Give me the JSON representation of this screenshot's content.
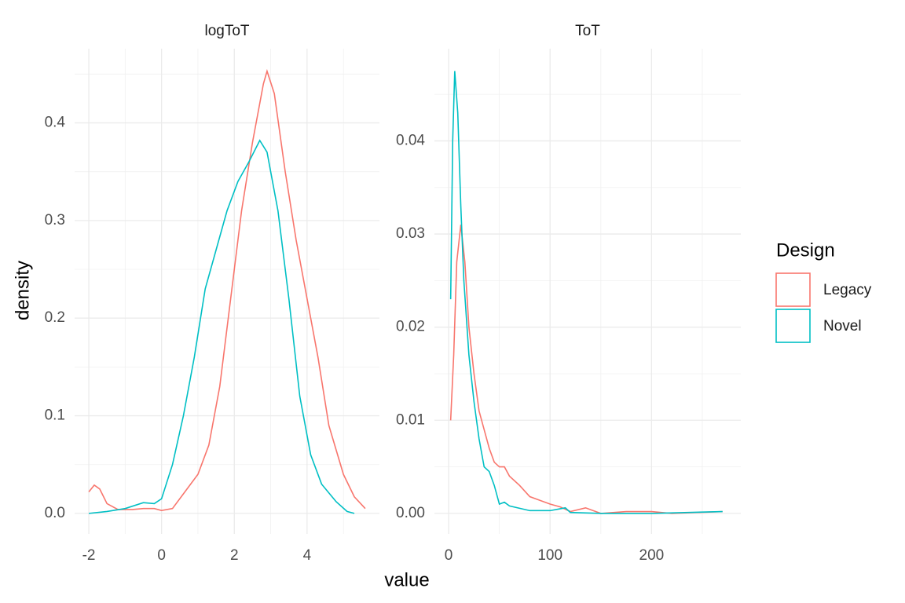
{
  "chart_data": [
    {
      "type": "line",
      "title": "logToT",
      "ylabel": "density",
      "xlabel": "value",
      "legend_title": "Design",
      "xlim": [
        -2.39,
        5.99
      ],
      "ylim": [
        -0.021,
        0.476
      ],
      "xticks": [
        -2,
        0,
        2,
        4
      ],
      "yticks": [
        {
          "value": 0,
          "label": "0.0"
        },
        0.1,
        0.2,
        0.3,
        0.4
      ],
      "grid": true,
      "series": [
        {
          "name": "Legacy",
          "color": "#F8766D",
          "x": [
            -2,
            -1.85,
            -1.7,
            -1.5,
            -1.2,
            -0.8,
            -0.5,
            -0.2,
            0,
            0.3,
            0.6,
            1,
            1.3,
            1.6,
            1.9,
            2.2,
            2.5,
            2.8,
            2.9,
            3.1,
            3.4,
            3.7,
            4.0,
            4.3,
            4.6,
            5.0,
            5.3,
            5.6
          ],
          "values": [
            0.022,
            0.029,
            0.025,
            0.01,
            0.004,
            0.004,
            0.005,
            0.005,
            0.003,
            0.005,
            0.02,
            0.04,
            0.07,
            0.13,
            0.22,
            0.31,
            0.38,
            0.44,
            0.453,
            0.43,
            0.35,
            0.28,
            0.22,
            0.16,
            0.09,
            0.04,
            0.017,
            0.005
          ]
        },
        {
          "name": "Novel",
          "color": "#00BFC4",
          "x": [
            -2,
            -1.5,
            -1,
            -0.5,
            -0.2,
            0,
            0.3,
            0.6,
            0.9,
            1.2,
            1.5,
            1.8,
            2.1,
            2.4,
            2.7,
            2.9,
            3.2,
            3.5,
            3.8,
            4.1,
            4.4,
            4.8,
            5.1,
            5.3
          ],
          "values": [
            0,
            0.002,
            0.005,
            0.011,
            0.01,
            0.015,
            0.05,
            0.1,
            0.16,
            0.23,
            0.27,
            0.31,
            0.34,
            0.36,
            0.382,
            0.37,
            0.31,
            0.22,
            0.12,
            0.06,
            0.03,
            0.012,
            0.002,
            0
          ]
        }
      ]
    },
    {
      "type": "line",
      "title": "ToT",
      "xlim": [
        -14,
        288
      ],
      "ylim": [
        -0.0022,
        0.0499
      ],
      "xticks": [
        0,
        100,
        200
      ],
      "yticks": [
        {
          "value": 0,
          "label": "0.00"
        },
        {
          "value": 0.01,
          "label": "0.01"
        },
        {
          "value": 0.02,
          "label": "0.02"
        },
        {
          "value": 0.03,
          "label": "0.03"
        },
        {
          "value": 0.04,
          "label": "0.04"
        }
      ],
      "grid": true,
      "series": [
        {
          "name": "Legacy",
          "color": "#F8766D",
          "x": [
            2,
            5,
            8,
            12,
            16,
            20,
            25,
            30,
            35,
            40,
            45,
            50,
            55,
            60,
            70,
            80,
            100,
            110,
            120,
            135,
            150,
            175,
            200,
            220,
            270
          ],
          "values": [
            0.01,
            0.017,
            0.027,
            0.031,
            0.027,
            0.02,
            0.015,
            0.011,
            0.009,
            0.007,
            0.0055,
            0.005,
            0.005,
            0.004,
            0.003,
            0.0018,
            0.001,
            0.0007,
            0.0002,
            0.0006,
            0,
            0.0002,
            0.0002,
            0,
            0.0002
          ]
        },
        {
          "name": "Novel",
          "color": "#00BFC4",
          "x": [
            2,
            4,
            6,
            9,
            12,
            15,
            20,
            25,
            30,
            35,
            40,
            45,
            50,
            55,
            60,
            80,
            100,
            115,
            120,
            150,
            200,
            270
          ],
          "values": [
            0.023,
            0.04,
            0.0475,
            0.043,
            0.033,
            0.025,
            0.017,
            0.012,
            0.008,
            0.005,
            0.0045,
            0.003,
            0.001,
            0.0012,
            0.0008,
            0.0003,
            0.0003,
            0.0006,
            0.0001,
            0,
            0,
            0.0002
          ]
        }
      ]
    }
  ]
}
